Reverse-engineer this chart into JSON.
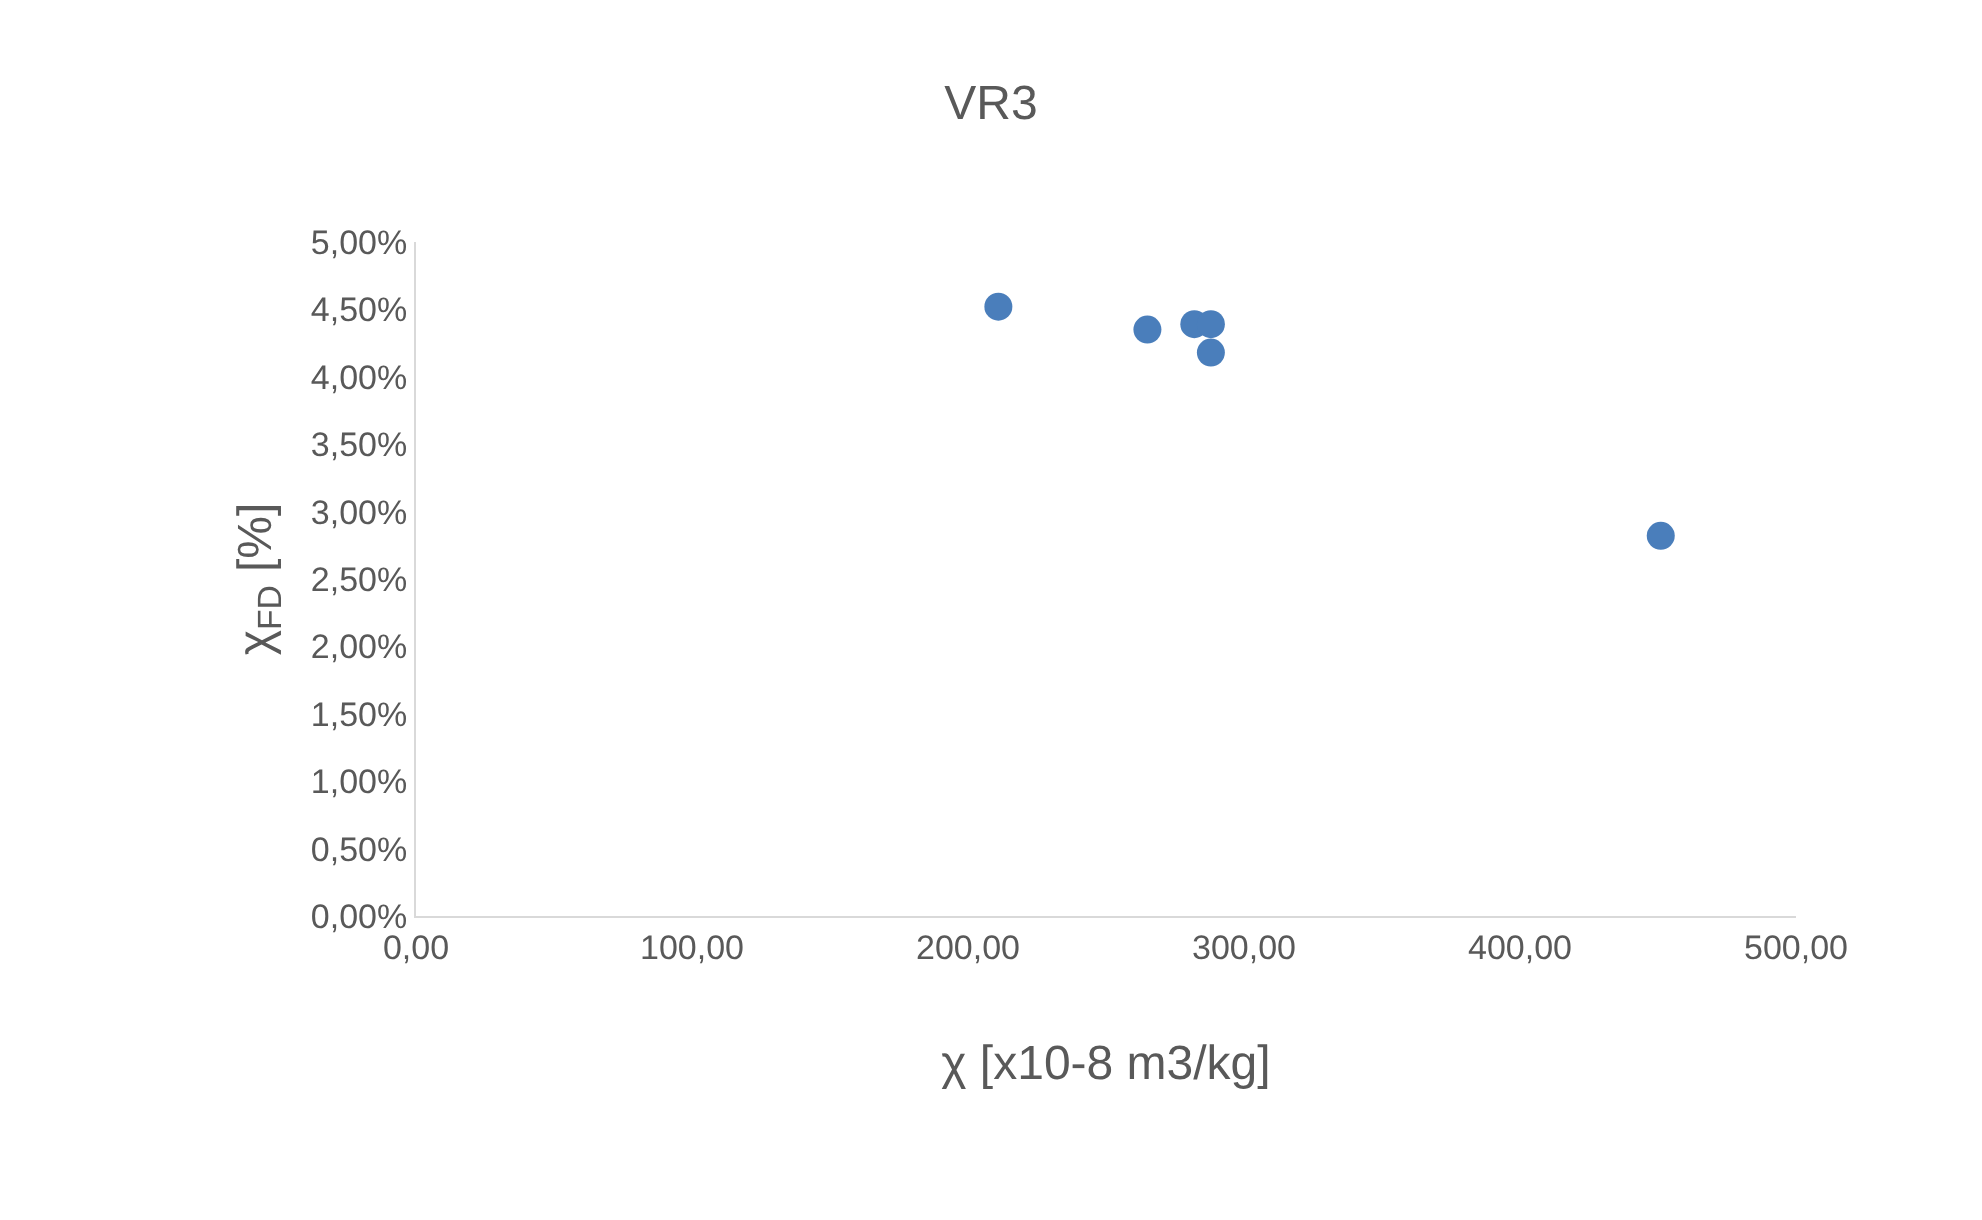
{
  "chart_data": {
    "type": "scatter",
    "title": "VR3",
    "xlabel": "χ [x10-8 m3/kg]",
    "ylabel": "χ$_{FD}$ [%]",
    "x": [
      211,
      265,
      282,
      288,
      288,
      451
    ],
    "series": [
      {
        "color": "#4a7ebb",
        "values": [
          4.52,
          4.35,
          4.39,
          4.39,
          4.18,
          2.82
        ]
      }
    ],
    "marker": "circle",
    "grid": false,
    "legend": false,
    "xlim": [
      0,
      500
    ],
    "xticks": [
      {
        "value": 0,
        "label": "0,00"
      },
      {
        "value": 100,
        "label": "100,00"
      },
      {
        "value": 200,
        "label": "200,00"
      },
      {
        "value": 300,
        "label": "300,00"
      },
      {
        "value": 400,
        "label": "400,00"
      },
      {
        "value": 500,
        "label": "500,00"
      }
    ],
    "ylim": [
      0,
      5
    ],
    "yticks": [
      {
        "value": 0,
        "label": "0,00%"
      },
      {
        "value": 0.5,
        "label": "0,50%"
      },
      {
        "value": 1,
        "label": "1,00%"
      },
      {
        "value": 1.5,
        "label": "1,50%"
      },
      {
        "value": 2,
        "label": "2,00%"
      },
      {
        "value": 2.5,
        "label": "2,50%"
      },
      {
        "value": 3,
        "label": "3,00%"
      },
      {
        "value": 3.5,
        "label": "3,50%"
      },
      {
        "value": 4,
        "label": "4,00%"
      },
      {
        "value": 4.5,
        "label": "4,50%"
      },
      {
        "value": 5,
        "label": "5,00%"
      }
    ]
  }
}
